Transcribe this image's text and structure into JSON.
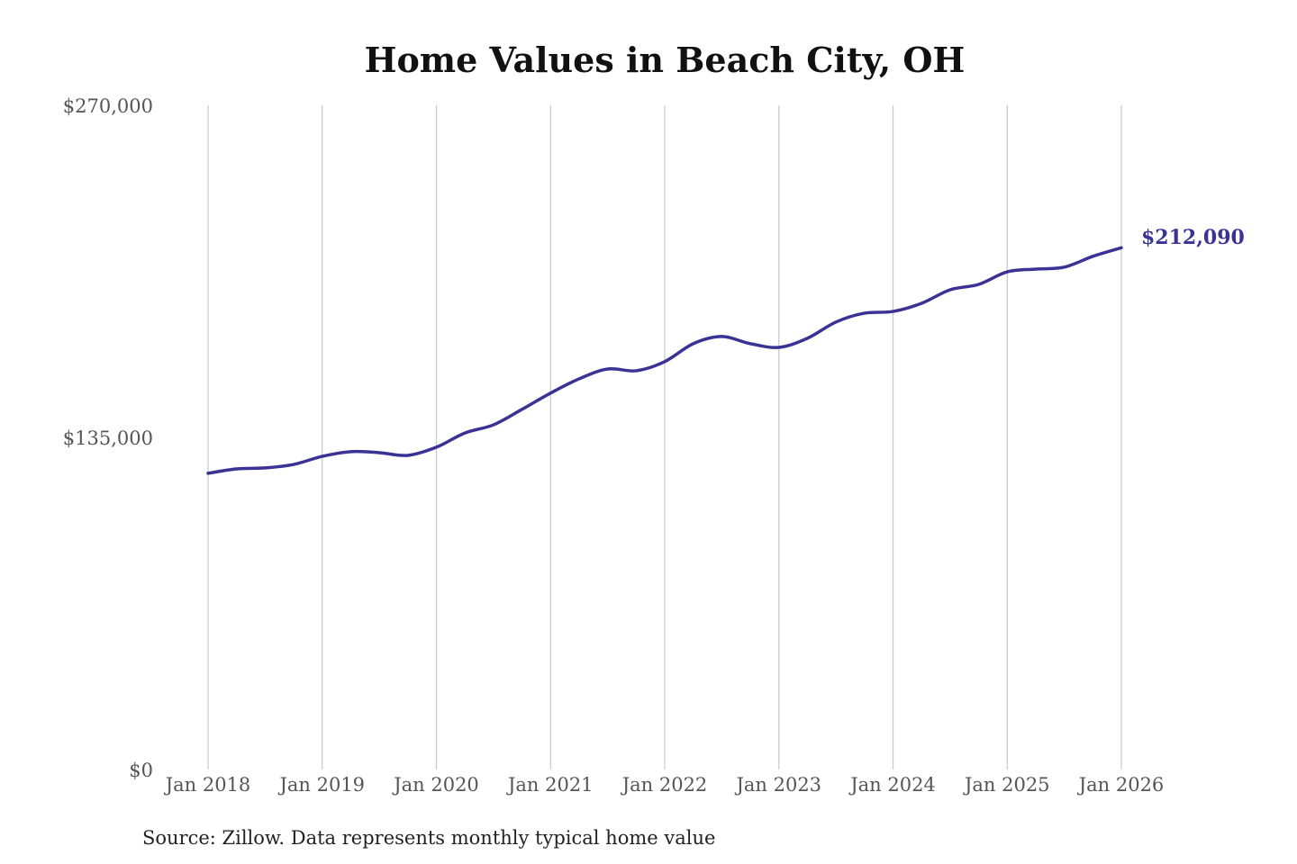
{
  "chart_data": {
    "type": "line",
    "title": "Home Values in Beach City, OH",
    "xlabel": "",
    "ylabel": "",
    "ylim": [
      0,
      270000
    ],
    "xlim": [
      2018,
      2026
    ],
    "grid": "vertical",
    "y_ticks": [
      {
        "value": 0,
        "label": "$0"
      },
      {
        "value": 135000,
        "label": "$135,000"
      },
      {
        "value": 270000,
        "label": "$270,000"
      }
    ],
    "x_ticks": [
      {
        "value": 2018,
        "label": "Jan 2018"
      },
      {
        "value": 2019,
        "label": "Jan 2019"
      },
      {
        "value": 2020,
        "label": "Jan 2020"
      },
      {
        "value": 2021,
        "label": "Jan 2021"
      },
      {
        "value": 2022,
        "label": "Jan 2022"
      },
      {
        "value": 2023,
        "label": "Jan 2023"
      },
      {
        "value": 2024,
        "label": "Jan 2024"
      },
      {
        "value": 2025,
        "label": "Jan 2025"
      },
      {
        "value": 2026,
        "label": "Jan 2026"
      }
    ],
    "series": [
      {
        "name": "Typical home value",
        "color": "#3a3294",
        "x": [
          2018,
          2018.25,
          2018.5,
          2018.75,
          2019,
          2019.25,
          2019.5,
          2019.75,
          2020,
          2020.25,
          2020.5,
          2020.75,
          2021,
          2021.25,
          2021.5,
          2021.75,
          2022,
          2022.25,
          2022.5,
          2022.75,
          2023,
          2023.25,
          2023.5,
          2023.75,
          2024,
          2024.25,
          2024.5,
          2024.75,
          2025,
          2025.25,
          2025.5,
          2025.75,
          2026
        ],
        "values": [
          120400,
          122200,
          122600,
          124000,
          127300,
          129200,
          128800,
          127700,
          131000,
          136800,
          140100,
          146400,
          153000,
          158800,
          162800,
          162100,
          165800,
          173100,
          176000,
          173100,
          171600,
          175300,
          181900,
          185500,
          186200,
          189500,
          195000,
          197200,
          202300,
          203400,
          204200,
          208600,
          212090
        ]
      }
    ],
    "end_label": "$212,090",
    "source": "Source: Zillow. Data represents monthly typical home value"
  }
}
